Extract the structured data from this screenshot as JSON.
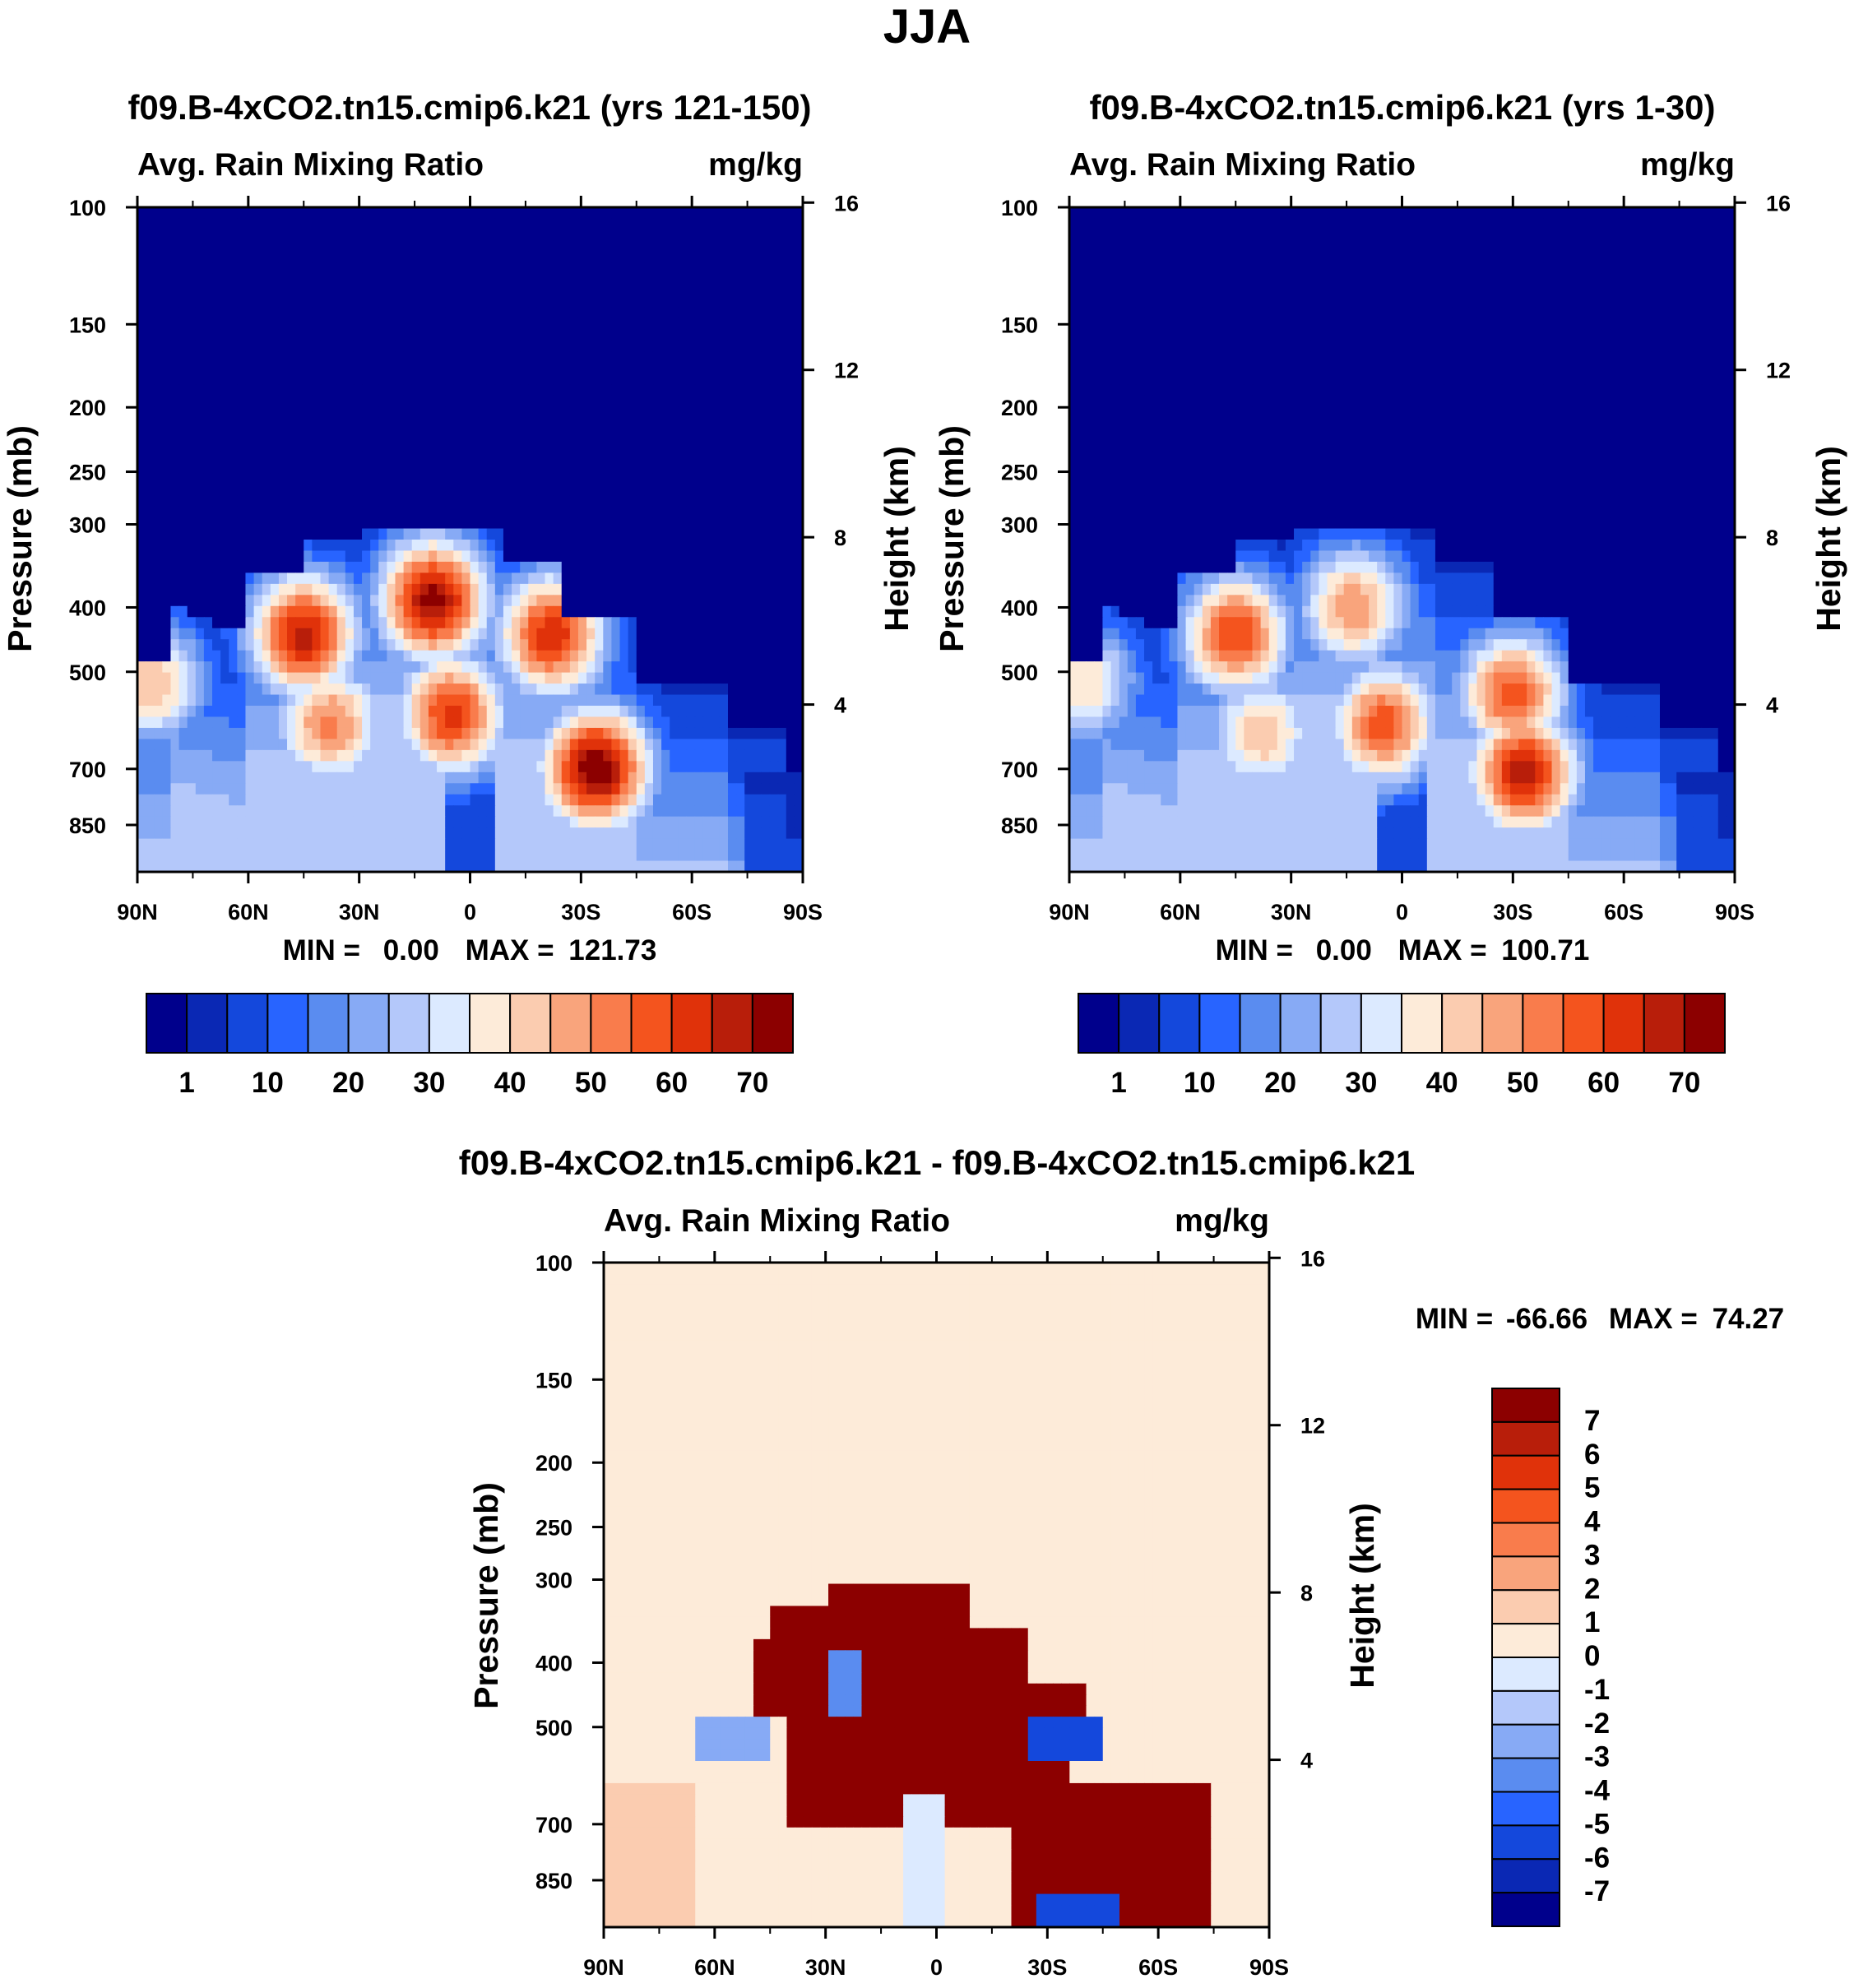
{
  "figure": {
    "season": "JJA",
    "units": "mg/kg"
  },
  "chart_data": [
    {
      "type": "heatmap",
      "title": "f09.B-4xCO2.tn15.cmip6.k21 (yrs 121-150)",
      "subtitle_left": "Avg. Rain Mixing Ratio",
      "subtitle_right": "mg/kg",
      "xlabel": "",
      "ylabel": "Pressure (mb)",
      "ylabel_right": "Height (km)",
      "x_ticks": [
        "90N",
        "60N",
        "30N",
        "0",
        "30S",
        "60S",
        "90S"
      ],
      "y_ticks": [
        100,
        150,
        200,
        250,
        300,
        400,
        500,
        700,
        850
      ],
      "y_ticks_right": [
        16,
        12,
        8,
        4
      ],
      "ylim": [
        1000,
        100
      ],
      "stats": {
        "min_label": "MIN =",
        "min": "0.00",
        "max_label": "MAX =",
        "max": "121.73"
      },
      "colorbar": {
        "labels": [
          "1",
          "10",
          "20",
          "30",
          "40",
          "50",
          "60",
          "70"
        ]
      },
      "hotspots": [
        {
          "lat": -34,
          "p": 700,
          "v": 75
        },
        {
          "lat": 5,
          "p": 580,
          "v": 62
        },
        {
          "lat": 38,
          "p": 600,
          "v": 52
        },
        {
          "lat": 10,
          "p": 390,
          "v": 72
        },
        {
          "lat": 45,
          "p": 440,
          "v": 67
        },
        {
          "lat": -22,
          "p": 440,
          "v": 64
        },
        {
          "lat": 86,
          "p": 520,
          "v": 45
        }
      ]
    },
    {
      "type": "heatmap",
      "title": "f09.B-4xCO2.tn15.cmip6.k21 (yrs 1-30)",
      "subtitle_left": "Avg. Rain Mixing Ratio",
      "subtitle_right": "mg/kg",
      "xlabel": "",
      "ylabel": "Pressure (mb)",
      "ylabel_right": "Height (km)",
      "x_ticks": [
        "90N",
        "60N",
        "30N",
        "0",
        "30S",
        "60S",
        "90S"
      ],
      "y_ticks": [
        100,
        150,
        200,
        250,
        300,
        400,
        500,
        700,
        850
      ],
      "y_ticks_right": [
        16,
        12,
        8,
        4
      ],
      "ylim": [
        1000,
        100
      ],
      "stats": {
        "min_label": "MIN =",
        "min": "0.00",
        "max_label": "MAX =",
        "max": "100.71"
      },
      "colorbar": {
        "labels": [
          "1",
          "10",
          "20",
          "30",
          "40",
          "50",
          "60",
          "70"
        ]
      },
      "hotspots": [
        {
          "lat": -33,
          "p": 710,
          "v": 68
        },
        {
          "lat": 5,
          "p": 600,
          "v": 58
        },
        {
          "lat": 38,
          "p": 620,
          "v": 45
        },
        {
          "lat": 45,
          "p": 440,
          "v": 60
        },
        {
          "lat": 13,
          "p": 400,
          "v": 50
        },
        {
          "lat": -30,
          "p": 540,
          "v": 58
        },
        {
          "lat": 86,
          "p": 520,
          "v": 40
        }
      ]
    },
    {
      "type": "heatmap",
      "title": "f09.B-4xCO2.tn15.cmip6.k21 - f09.B-4xCO2.tn15.cmip6.k21",
      "subtitle_left": "Avg. Rain Mixing Ratio",
      "subtitle_right": "mg/kg",
      "xlabel": "",
      "ylabel": "Pressure (mb)",
      "ylabel_right": "Height (km)",
      "x_ticks": [
        "90N",
        "60N",
        "30N",
        "0",
        "30S",
        "60S",
        "90S"
      ],
      "y_ticks": [
        100,
        150,
        200,
        250,
        300,
        400,
        500,
        700,
        850
      ],
      "y_ticks_right": [
        16,
        12,
        8,
        4
      ],
      "ylim": [
        1000,
        100
      ],
      "stats": {
        "min_label": "MIN =",
        "min": "-66.66",
        "max_label": "MAX =",
        "max": "74.27"
      },
      "colorbar": {
        "labels": [
          "7",
          "6",
          "5",
          "4",
          "3",
          "2",
          "1",
          "0",
          "-1",
          "-2",
          "-3",
          "-4",
          "-5",
          "-6",
          "-7"
        ]
      }
    }
  ],
  "colors": {
    "rain_scale": [
      "#00008c",
      "#0a28b4",
      "#1448dc",
      "#2864ff",
      "#5a8cf0",
      "#87aaf5",
      "#b4c8fa",
      "#dceaff",
      "#fdebd9",
      "#fbccb0",
      "#f9a47c",
      "#f97c4c",
      "#f4541e",
      "#e0320a",
      "#b81e0a",
      "#8c0000"
    ],
    "diff_scale": [
      "#00008c",
      "#0a28b4",
      "#1448dc",
      "#2864ff",
      "#5a8cf0",
      "#87aaf5",
      "#b4c8fa",
      "#dceaff",
      "#fdebd9",
      "#fbccb0",
      "#f9a47c",
      "#f97c4c",
      "#f4541e",
      "#e0320a",
      "#b81e0a",
      "#8c0000"
    ]
  }
}
